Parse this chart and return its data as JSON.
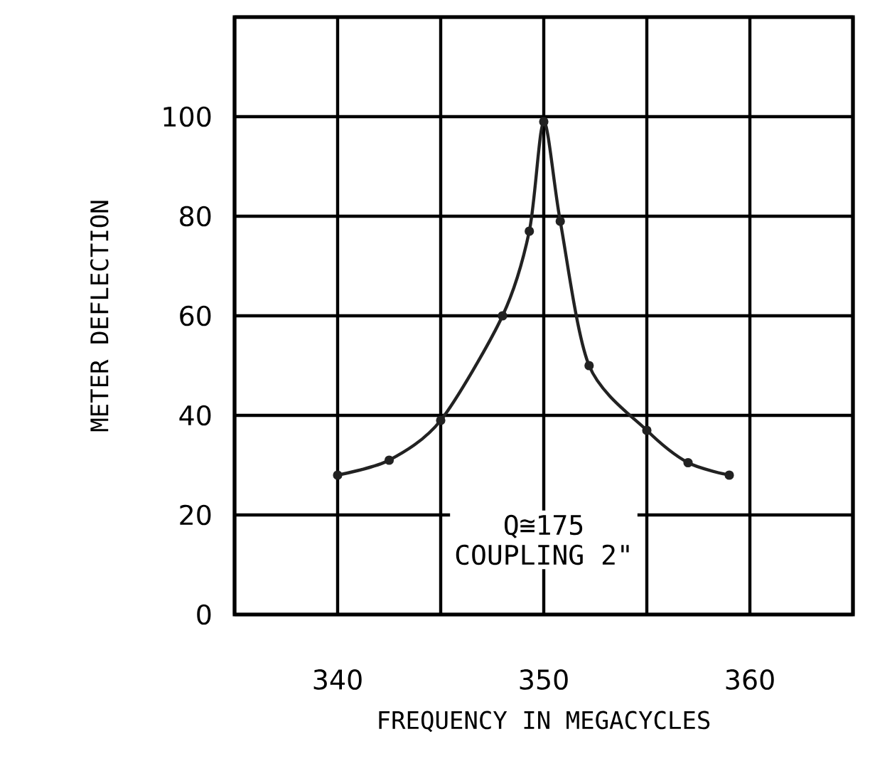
{
  "chart_data": {
    "type": "line",
    "xlabel": "FREQUENCY IN MEGACYCLES",
    "ylabel": "METER DEFLECTION",
    "x": [
      340,
      342.5,
      345,
      348,
      349.3,
      350,
      350.8,
      352.2,
      355,
      357,
      359
    ],
    "series": [
      {
        "color": "#222222",
        "values": [
          28,
          31,
          39,
          60,
          77,
          99,
          79,
          50,
          37,
          30.5,
          28
        ]
      }
    ],
    "xlim": [
      335,
      365
    ],
    "xticks": [
      {
        "value": 335,
        "label": null
      },
      340,
      {
        "value": 345,
        "label": null
      },
      350,
      {
        "value": 355,
        "label": null
      },
      360,
      {
        "value": 365,
        "label": null
      }
    ],
    "ylim": [
      0,
      120
    ],
    "yticks": [
      0,
      20,
      40,
      60,
      80,
      100,
      {
        "value": 120,
        "label": null
      }
    ],
    "grid": true,
    "marker": "circle",
    "line_style": "solid",
    "annotations": [
      "Q≅175",
      "COUPLING 2\""
    ]
  }
}
